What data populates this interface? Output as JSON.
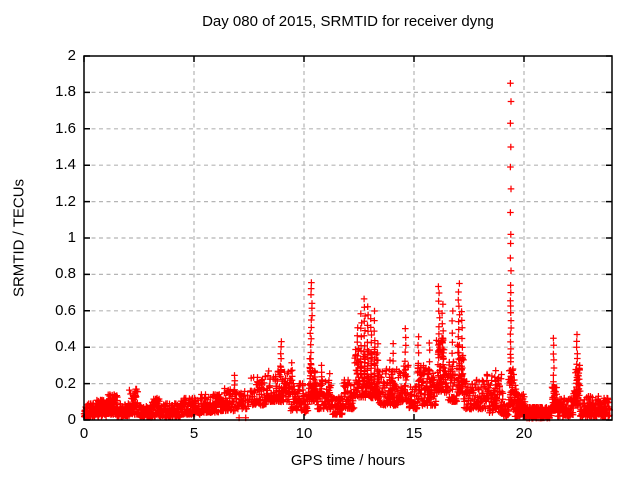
{
  "window": {
    "title": "Day 080 of 2015, SRMTID for receiver dyng"
  },
  "colors": {
    "marker": "#ff0000",
    "grid": "#b5b5b5",
    "axis": "#000000",
    "background": "#ffffff",
    "text": "#000000"
  },
  "chart_data": {
    "type": "scatter",
    "title": "Day 080 of 2015, SRMTID for receiver dyng",
    "xlabel": "GPS time / hours",
    "ylabel": "SRMTID / TECUs",
    "xlim": [
      0,
      24
    ],
    "ylim": [
      0,
      2
    ],
    "xtick_values": [
      0,
      5,
      10,
      15,
      20
    ],
    "xtick_labels": [
      "0",
      "5",
      "10",
      "15",
      "20"
    ],
    "ytick_values": [
      0,
      0.2,
      0.4,
      0.6,
      0.8,
      1,
      1.2,
      1.4,
      1.6,
      1.8,
      2
    ],
    "ytick_labels": [
      "0",
      "0.2",
      "0.4",
      "0.6",
      "0.8",
      "1",
      "1.2",
      "1.4",
      "1.6",
      "1.8",
      "2"
    ],
    "grid": true,
    "grid_style": "dashed",
    "legend_position": "none",
    "marker": {
      "shape": "plus",
      "color": "#ff0000",
      "size": 7
    },
    "series_name": "SRMTID for receiver dyng",
    "baseline_bands": [
      [
        0.0,
        0.55,
        0.015,
        0.09,
        60
      ],
      [
        0.55,
        1.1,
        0.02,
        0.11,
        60
      ],
      [
        1.1,
        1.5,
        0.03,
        0.14,
        42
      ],
      [
        1.5,
        2.05,
        0.02,
        0.09,
        58
      ],
      [
        2.05,
        2.45,
        0.03,
        0.17,
        45
      ],
      [
        2.45,
        3.1,
        0.015,
        0.08,
        65
      ],
      [
        3.1,
        3.65,
        0.02,
        0.12,
        55
      ],
      [
        3.65,
        4.4,
        0.015,
        0.09,
        70
      ],
      [
        4.4,
        5.3,
        0.03,
        0.12,
        80
      ],
      [
        5.3,
        6.2,
        0.04,
        0.14,
        78
      ],
      [
        6.2,
        6.95,
        0.05,
        0.18,
        58
      ],
      [
        6.95,
        7.6,
        0.06,
        0.16,
        26
      ],
      [
        7.6,
        8.3,
        0.08,
        0.24,
        58
      ],
      [
        8.3,
        9.4,
        0.1,
        0.27,
        95
      ],
      [
        9.4,
        9.95,
        0.05,
        0.2,
        42
      ],
      [
        9.95,
        10.2,
        0.04,
        0.15,
        22
      ],
      [
        10.2,
        10.6,
        0.1,
        0.3,
        46
      ],
      [
        10.6,
        11.3,
        0.06,
        0.22,
        58
      ],
      [
        11.3,
        11.8,
        0.03,
        0.13,
        40
      ],
      [
        11.8,
        12.3,
        0.06,
        0.22,
        46
      ],
      [
        12.3,
        13.4,
        0.12,
        0.4,
        115
      ],
      [
        13.4,
        14.3,
        0.08,
        0.28,
        75
      ],
      [
        14.3,
        14.75,
        0.1,
        0.3,
        40
      ],
      [
        14.75,
        15.15,
        0.06,
        0.2,
        34
      ],
      [
        15.15,
        16.0,
        0.08,
        0.3,
        72
      ],
      [
        16.0,
        16.5,
        0.15,
        0.45,
        55
      ],
      [
        16.5,
        16.95,
        0.1,
        0.32,
        40
      ],
      [
        16.95,
        17.25,
        0.15,
        0.45,
        34
      ],
      [
        17.25,
        18.3,
        0.06,
        0.22,
        85
      ],
      [
        18.3,
        19.05,
        0.04,
        0.25,
        68
      ],
      [
        19.05,
        19.3,
        0.02,
        0.1,
        20
      ],
      [
        19.3,
        19.52,
        0.08,
        0.3,
        32
      ],
      [
        19.52,
        20.1,
        0.02,
        0.15,
        55
      ],
      [
        20.1,
        21.25,
        0.01,
        0.07,
        115
      ],
      [
        21.25,
        21.5,
        0.05,
        0.18,
        30
      ],
      [
        21.5,
        22.25,
        0.02,
        0.12,
        68
      ],
      [
        22.25,
        22.55,
        0.08,
        0.3,
        42
      ],
      [
        22.55,
        23.4,
        0.02,
        0.13,
        88
      ],
      [
        23.4,
        23.9,
        0.02,
        0.12,
        50
      ]
    ],
    "spikes": [
      [
        6.85,
        0.14,
        0.24,
        5,
        0.02
      ],
      [
        8.95,
        0.24,
        0.43,
        7,
        0.03
      ],
      [
        9.45,
        0.18,
        0.31,
        5,
        0.02
      ],
      [
        10.32,
        0.2,
        0.75,
        17,
        0.05
      ],
      [
        10.8,
        0.14,
        0.3,
        6,
        0.02
      ],
      [
        11.15,
        0.1,
        0.25,
        5,
        0.02
      ],
      [
        12.45,
        0.2,
        0.5,
        9,
        0.03
      ],
      [
        12.6,
        0.25,
        0.58,
        9,
        0.02
      ],
      [
        12.75,
        0.25,
        0.66,
        11,
        0.03
      ],
      [
        12.9,
        0.2,
        0.62,
        10,
        0.02
      ],
      [
        13.05,
        0.2,
        0.55,
        9,
        0.02
      ],
      [
        13.2,
        0.15,
        0.6,
        9,
        0.02
      ],
      [
        13.35,
        0.12,
        0.42,
        7,
        0.02
      ],
      [
        13.9,
        0.1,
        0.33,
        6,
        0.02
      ],
      [
        14.05,
        0.12,
        0.42,
        7,
        0.02
      ],
      [
        14.6,
        0.15,
        0.5,
        9,
        0.03
      ],
      [
        15.2,
        0.12,
        0.46,
        8,
        0.02
      ],
      [
        15.7,
        0.12,
        0.43,
        7,
        0.02
      ],
      [
        16.15,
        0.2,
        0.74,
        13,
        0.04
      ],
      [
        16.3,
        0.2,
        0.63,
        10,
        0.03
      ],
      [
        16.75,
        0.12,
        0.6,
        9,
        0.02
      ],
      [
        17.05,
        0.2,
        0.75,
        14,
        0.04
      ],
      [
        17.18,
        0.2,
        0.6,
        9,
        0.02
      ],
      [
        18.7,
        0.08,
        0.27,
        6,
        0.03
      ],
      [
        19.4,
        0.28,
        0.66,
        11,
        0.02
      ],
      [
        21.35,
        0.08,
        0.45,
        10,
        0.02
      ],
      [
        22.4,
        0.1,
        0.47,
        12,
        0.03
      ]
    ],
    "outlier_points": [
      [
        7.05,
        0.012
      ],
      [
        7.35,
        0.012
      ],
      [
        19.38,
        1.85
      ],
      [
        19.41,
        1.75
      ],
      [
        19.38,
        1.63
      ],
      [
        19.4,
        1.5
      ],
      [
        19.38,
        1.39
      ],
      [
        19.41,
        1.27
      ],
      [
        19.38,
        1.14
      ],
      [
        19.4,
        1.02
      ],
      [
        19.39,
        0.97
      ],
      [
        19.38,
        0.89
      ],
      [
        19.41,
        0.82
      ],
      [
        19.39,
        0.74
      ],
      [
        19.4,
        0.7
      ],
      [
        19.5,
        0.28
      ],
      [
        19.53,
        0.25
      ],
      [
        19.56,
        0.22
      ],
      [
        19.6,
        0.19
      ],
      [
        19.63,
        0.17
      ],
      [
        19.67,
        0.15
      ],
      [
        19.7,
        0.13
      ],
      [
        19.74,
        0.11
      ],
      [
        19.78,
        0.09
      ],
      [
        19.82,
        0.08
      ],
      [
        19.87,
        0.06
      ],
      [
        19.92,
        0.05
      ],
      [
        19.97,
        0.04
      ]
    ]
  }
}
